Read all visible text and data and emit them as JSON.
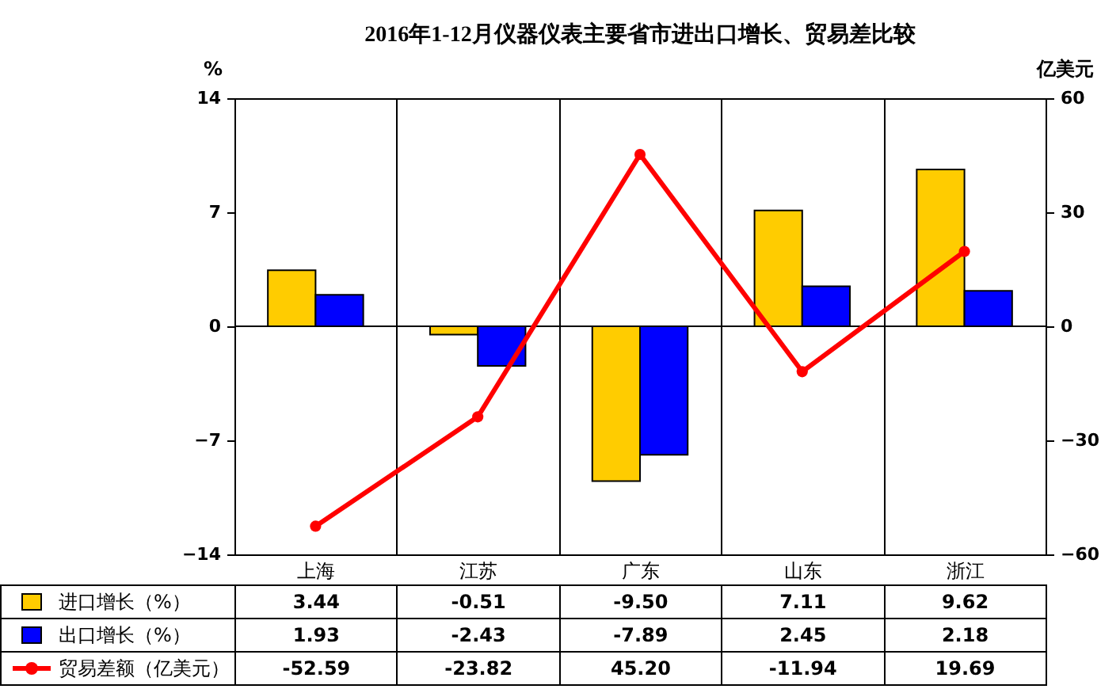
{
  "chart_data": {
    "type": "bar",
    "title": "2016年1-12月仪器仪表主要省市进出口增长、贸易差比较",
    "categories": [
      "上海",
      "江苏",
      "广东",
      "山东",
      "浙江"
    ],
    "ylabel": "%",
    "y2label": "亿美元",
    "ylim": [
      -14,
      14
    ],
    "yticks": [
      -14,
      -7,
      0,
      7,
      14
    ],
    "y2lim": [
      -60,
      60
    ],
    "y2ticks": [
      -60,
      -30,
      0,
      30,
      60
    ],
    "grid": "x",
    "legend": "bottom",
    "ref_lines": [
      {
        "axis": "y",
        "value": 0
      }
    ],
    "series": [
      {
        "name": "进口增长（%）",
        "type": "bar",
        "color": "#ffcc00",
        "values": [
          3.44,
          -0.51,
          -9.5,
          7.11,
          9.62
        ],
        "value_labels": [
          "3.44",
          "-0.51",
          "-9.50",
          "7.11",
          "9.62"
        ]
      },
      {
        "name": "出口增长（%）",
        "type": "bar",
        "color": "#0000ff",
        "values": [
          1.93,
          -2.43,
          -7.89,
          2.45,
          2.18
        ],
        "value_labels": [
          "1.93",
          "-2.43",
          "-7.89",
          "2.45",
          "2.18"
        ]
      },
      {
        "name": "贸易差额（亿美元）",
        "type": "line",
        "axis": "y2",
        "marker": "circle",
        "color": "#ff0000",
        "values": [
          -52.59,
          -23.82,
          45.2,
          -11.94,
          19.69
        ],
        "value_labels": [
          "-52.59",
          "-23.82",
          "45.20",
          "-11.94",
          "19.69"
        ]
      }
    ]
  }
}
